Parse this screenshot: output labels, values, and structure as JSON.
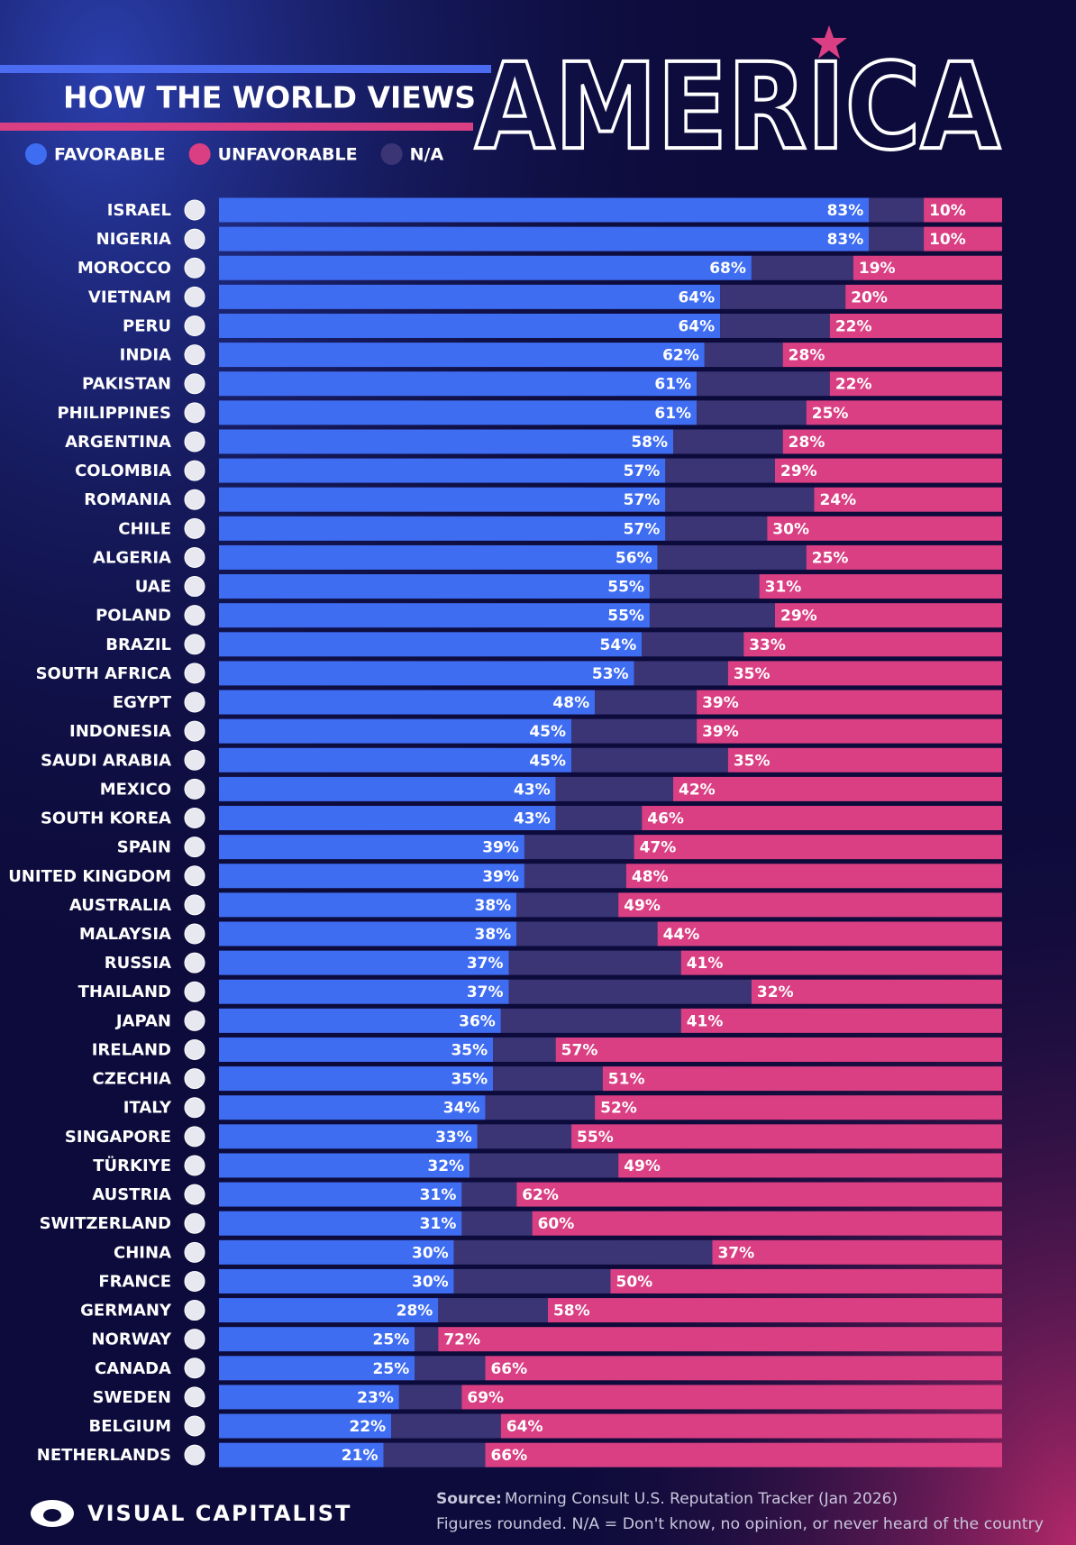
{
  "chart_data": {
    "type": "stacked-bar-horizontal",
    "title": "HOW THE WORLD VIEWS",
    "subtitle": "AMERICA",
    "categories": [
      "ISRAEL",
      "NIGERIA",
      "MOROCCO",
      "VIETNAM",
      "PERU",
      "INDIA",
      "PAKISTAN",
      "PHILIPPINES",
      "ARGENTINA",
      "COLOMBIA",
      "ROMANIA",
      "CHILE",
      "ALGERIA",
      "UAE",
      "POLAND",
      "BRAZIL",
      "SOUTH AFRICA",
      "EGYPT",
      "INDONESIA",
      "SAUDI ARABIA",
      "MEXICO",
      "SOUTH KOREA",
      "SPAIN",
      "UNITED KINGDOM",
      "AUSTRALIA",
      "MALAYSIA",
      "RUSSIA",
      "THAILAND",
      "JAPAN",
      "IRELAND",
      "CZECHIA",
      "ITALY",
      "SINGAPORE",
      "TÜRKIYE",
      "AUSTRIA",
      "SWITZERLAND",
      "CHINA",
      "FRANCE",
      "GERMANY",
      "NORWAY",
      "CANADA",
      "SWEDEN",
      "BELGIUM",
      "NETHERLANDS"
    ],
    "series": [
      {
        "name": "FAVORABLE",
        "color": "#3f6df2",
        "values": [
          83,
          83,
          68,
          64,
          64,
          62,
          61,
          61,
          58,
          57,
          57,
          57,
          56,
          55,
          55,
          54,
          53,
          48,
          45,
          45,
          43,
          43,
          39,
          39,
          38,
          38,
          37,
          37,
          36,
          35,
          35,
          34,
          33,
          32,
          31,
          31,
          30,
          30,
          28,
          25,
          25,
          23,
          22,
          21
        ],
        "value_labels": [
          "83%",
          "83%",
          "68%",
          "64%",
          "64%",
          "62%",
          "61%",
          "61%",
          "58%",
          "57%",
          "57%",
          "57%",
          "56%",
          "55%",
          "55%",
          "54%",
          "53%",
          "48%",
          "45%",
          "45%",
          "43%",
          "43%",
          "39%",
          "39%",
          "38%",
          "38%",
          "37%",
          "37%",
          "36%",
          "35%",
          "35%",
          "34%",
          "33%",
          "32%",
          "31%",
          "31%",
          "30%",
          "30%",
          "28%",
          "25%",
          "25%",
          "23%",
          "22%",
          "21%"
        ]
      },
      {
        "name": "UNFAVORABLE",
        "color": "#d93f82",
        "values": [
          10,
          10,
          19,
          20,
          22,
          28,
          22,
          25,
          28,
          29,
          24,
          30,
          25,
          31,
          29,
          33,
          35,
          39,
          39,
          35,
          42,
          46,
          47,
          48,
          49,
          44,
          41,
          32,
          41,
          57,
          51,
          52,
          55,
          49,
          62,
          60,
          37,
          50,
          58,
          72,
          66,
          69,
          64,
          66
        ],
        "value_labels": [
          "10%",
          "10%",
          "19%",
          "20%",
          "22%",
          "28%",
          "22%",
          "25%",
          "28%",
          "29%",
          "24%",
          "30%",
          "25%",
          "31%",
          "29%",
          "33%",
          "35%",
          "39%",
          "39%",
          "35%",
          "42%",
          "46%",
          "47%",
          "48%",
          "49%",
          "44%",
          "41%",
          "32%",
          "41%",
          "57%",
          "51%",
          "52%",
          "55%",
          "49%",
          "62%",
          "60%",
          "37%",
          "50%",
          "58%",
          "72%",
          "66%",
          "69%",
          "64%",
          "66%"
        ]
      },
      {
        "name": "N/A",
        "color": "#3b3576",
        "values": [
          7,
          7,
          13,
          16,
          14,
          10,
          17,
          14,
          14,
          14,
          19,
          13,
          19,
          14,
          16,
          13,
          12,
          13,
          16,
          20,
          15,
          11,
          14,
          13,
          13,
          18,
          22,
          31,
          23,
          8,
          14,
          14,
          12,
          19,
          7,
          9,
          33,
          20,
          14,
          3,
          9,
          8,
          14,
          13
        ]
      }
    ],
    "xlim": [
      0,
      100
    ],
    "source_label": "Source:",
    "source": "Morning Consult U.S. Reputation Tracker (Jan 2026)",
    "note": "Figures rounded. N/A = Don't know, no opinion, or never heard of the country",
    "brand": "VISUAL CAPITALIST"
  }
}
